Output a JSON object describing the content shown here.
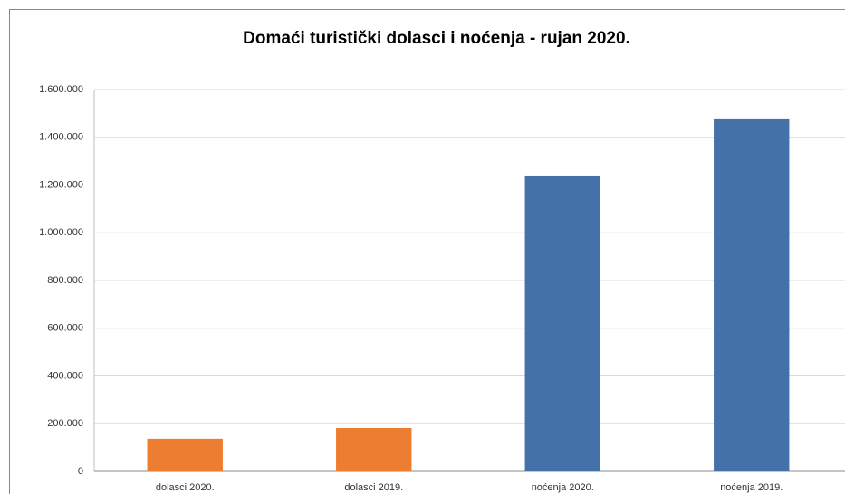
{
  "chart_data": {
    "type": "bar",
    "title": "Domaći turistički dolasci i noćenja - rujan 2020.",
    "categories": [
      "dolasci 2020.",
      "dolasci 2019.",
      "noćenja 2020.",
      "noćenja 2019."
    ],
    "values": [
      137000,
      182000,
      1240000,
      1479000
    ],
    "colors": [
      "#ed7d31",
      "#ed7d31",
      "#4472a8",
      "#4472a8"
    ],
    "ylim": [
      0,
      1600000
    ],
    "yticks": [
      0,
      {
        "value": 200000,
        "label": "200.000"
      },
      {
        "value": 400000,
        "label": "400.000"
      },
      {
        "value": 600000,
        "label": "600.000"
      },
      {
        "value": 800000,
        "label": "800.000"
      },
      {
        "value": 1000000,
        "label": "1.000.000"
      },
      {
        "value": 1200000,
        "label": "1.200.000"
      },
      {
        "value": 1400000,
        "label": "1.400.000"
      },
      {
        "value": 1600000,
        "label": "1.600.000"
      }
    ],
    "grid": true
  }
}
